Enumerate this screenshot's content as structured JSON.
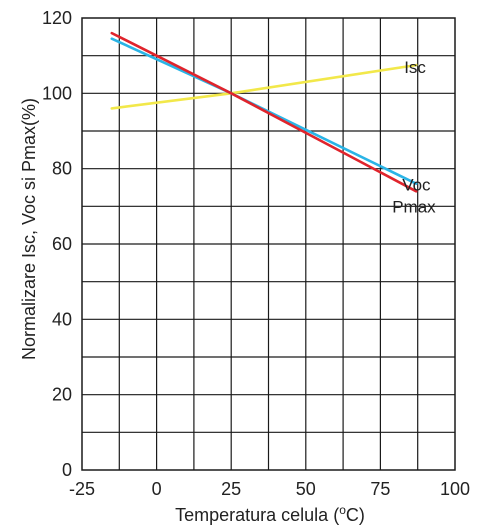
{
  "chart_data": {
    "type": "line",
    "title": "",
    "xlabel": "Temperatura celula (",
    "xlabel_sup": "o",
    "xlabel_unit": "C)",
    "ylabel": "Normalizare Isc, Voc si Pmax(%)",
    "xlim": [
      -25,
      100
    ],
    "ylim": [
      0,
      120
    ],
    "x_ticks": [
      -25,
      0,
      25,
      50,
      75,
      100
    ],
    "x_tick_labels": [
      "-25",
      "0",
      "25",
      "50",
      "75",
      "100"
    ],
    "y_ticks": [
      0,
      20,
      40,
      60,
      80,
      100,
      120
    ],
    "y_tick_labels": [
      "0",
      "20",
      "40",
      "60",
      "80",
      "100",
      "120"
    ],
    "x_grid_step": 12.5,
    "y_grid_step": 10,
    "grid": true,
    "series": [
      {
        "name": "Isc",
        "color": "#f2e84a",
        "x": [
          -15,
          25,
          87
        ],
        "y": [
          96,
          100,
          107.5
        ]
      },
      {
        "name": "Voc",
        "color": "#2ab4e6",
        "x": [
          -15,
          25,
          87
        ],
        "y": [
          114.5,
          100,
          76
        ]
      },
      {
        "name": "Pmax",
        "color": "#e0242c",
        "x": [
          -15,
          25,
          87
        ],
        "y": [
          116,
          100,
          74
        ]
      }
    ]
  }
}
